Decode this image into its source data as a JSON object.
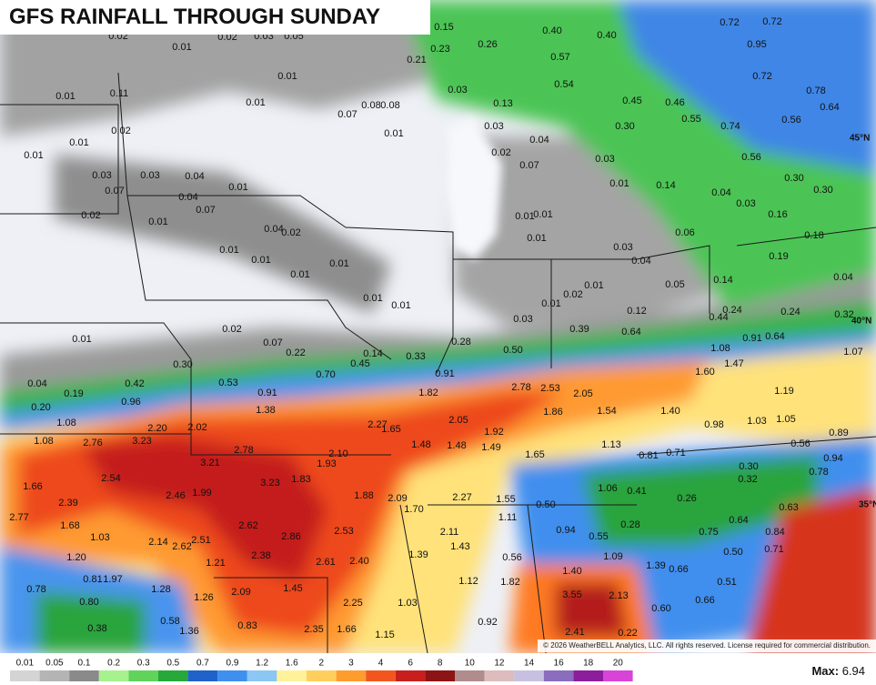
{
  "header": {
    "title": "GFS RAINFALL THROUGH SUNDAY"
  },
  "map": {
    "point_labels": [
      "0.02",
      "0.01",
      "0.02",
      "0.03",
      "0.05",
      "0.15",
      "0.23",
      "0.26",
      "0.21",
      "0.40",
      "0.40",
      "0.72",
      "0.72",
      "0.95",
      "0.57",
      "0.72",
      "0.54",
      "0.78",
      "0.01",
      "0.11",
      "0.01",
      "0.01",
      "0.03",
      "0.45",
      "0.46",
      "0.64",
      "0.07",
      "0.08",
      "0.08",
      "0.13",
      "0.55",
      "0.56",
      "0.30",
      "0.03",
      "0.02",
      "0.01",
      "0.74",
      "0.04",
      "0.01",
      "0.01",
      "0.02",
      "0.07",
      "0.03",
      "0.56",
      "0.03",
      "0.03",
      "0.04",
      "0.01",
      "0.01",
      "0.14",
      "0.30",
      "0.30",
      "0.07",
      "0.04",
      "0.04",
      "0.03",
      "0.07",
      "0.02",
      "0.01",
      "0.01",
      "0.01",
      "0.16",
      "0.04",
      "0.02",
      "0.06",
      "0.18",
      "0.01",
      "0.01",
      "0.03",
      "0.01",
      "0.04",
      "0.19",
      "0.01",
      "0.01",
      "0.14",
      "0.04",
      "0.01",
      "0.05",
      "0.02",
      "0.01",
      "0.01",
      "0.01",
      "0.12",
      "0.24",
      "0.24",
      "0.32",
      "0.03",
      "0.44",
      "0.02",
      "0.39",
      "0.64",
      "0.01",
      "0.07",
      "0.28",
      "0.50",
      "0.91",
      "0.64",
      "1.08",
      "0.22",
      "0.14",
      "0.33",
      "1.07",
      "0.30",
      "0.45",
      "1.47",
      "0.70",
      "0.91",
      "1.60",
      "0.04",
      "0.42",
      "0.53",
      "0.19",
      "0.91",
      "1.82",
      "2.78",
      "2.53",
      "2.05",
      "1.19",
      "0.96",
      "0.20",
      "1.38",
      "1.86",
      "1.54",
      "1.40",
      "1.08",
      "2.20",
      "2.02",
      "2.27",
      "1.65",
      "2.05",
      "1.92",
      "1.03",
      "1.05",
      "0.98",
      "0.89",
      "1.08",
      "2.76",
      "3.23",
      "1.48",
      "1.48",
      "1.49",
      "1.13",
      "0.56",
      "2.78",
      "2.10",
      "1.65",
      "0.81",
      "0.71",
      "0.94",
      "3.21",
      "1.93",
      "0.30",
      "0.78",
      "2.54",
      "1.83",
      "3.23",
      "0.32",
      "1.66",
      "2.46",
      "1.99",
      "1.06",
      "0.41",
      "1.88",
      "2.09",
      "2.27",
      "1.55",
      "0.26",
      "2.39",
      "0.50",
      "0.63",
      "1.70",
      "1.11",
      "2.62",
      "0.64",
      "2.77",
      "1.68",
      "0.28",
      "0.94",
      "0.75",
      "0.84",
      "2.53",
      "2.86",
      "2.11",
      "1.03",
      "2.14",
      "2.51",
      "2.62",
      "0.55",
      "1.43",
      "0.50",
      "0.71",
      "1.20",
      "2.38",
      "1.39",
      "1.09",
      "0.56",
      "1.21",
      "2.61",
      "2.40",
      "1.39",
      "0.66",
      "1.40",
      "0.81",
      "1.97",
      "1.12",
      "1.82",
      "0.51",
      "0.78",
      "1.28",
      "1.45",
      "2.09",
      "1.26",
      "3.55",
      "2.13",
      "0.80",
      "2.25",
      "1.03",
      "0.66",
      "0.60",
      "0.58",
      "0.83",
      "0.92",
      "0.38",
      "1.36",
      "2.35",
      "1.66",
      "1.15",
      "2.41",
      "0.22"
    ],
    "latitude_labels": [
      "45°N",
      "40°N",
      "35°N"
    ],
    "copyright": "© 2026 WeatherBELL Analytics, LLC. All rights reserved. License required for commercial distribution."
  },
  "legend": {
    "items": [
      {
        "label": "0.01",
        "color": "#d4d4d4"
      },
      {
        "label": "0.05",
        "color": "#b4b4b4"
      },
      {
        "label": "0.1",
        "color": "#8a8a8a"
      },
      {
        "label": "0.2",
        "color": "#a6f28f"
      },
      {
        "label": "0.3",
        "color": "#5fd35a"
      },
      {
        "label": "0.5",
        "color": "#27a83a"
      },
      {
        "label": "0.7",
        "color": "#1f62c9"
      },
      {
        "label": "0.9",
        "color": "#3f8fee"
      },
      {
        "label": "1.2",
        "color": "#8cc6f2"
      },
      {
        "label": "1.6",
        "color": "#fff29a"
      },
      {
        "label": "2",
        "color": "#ffcf5e"
      },
      {
        "label": "3",
        "color": "#ff9c2e"
      },
      {
        "label": "4",
        "color": "#f2561e"
      },
      {
        "label": "6",
        "color": "#c81e1e"
      },
      {
        "label": "8",
        "color": "#8c1414"
      },
      {
        "label": "10",
        "color": "#b08c8c"
      },
      {
        "label": "12",
        "color": "#dcbcbc"
      },
      {
        "label": "14",
        "color": "#c8c0e0"
      },
      {
        "label": "16",
        "color": "#8c6cbc"
      },
      {
        "label": "18",
        "color": "#8c1e9c"
      },
      {
        "label": "20",
        "color": "#d844d8"
      }
    ]
  },
  "max": {
    "label": "Max:",
    "value": "6.94"
  }
}
